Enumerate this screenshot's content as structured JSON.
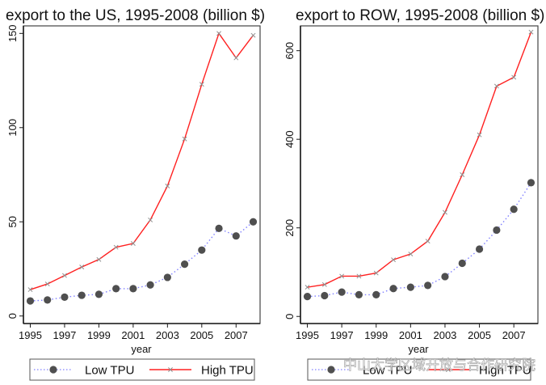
{
  "chart_data": [
    {
      "type": "line",
      "title": "export to the US, 1995-2008 (billion $)",
      "xlabel": "year",
      "ylabel": "",
      "x": [
        1995,
        1996,
        1997,
        1998,
        1999,
        2000,
        2001,
        2002,
        2003,
        2004,
        2005,
        2006,
        2007,
        2008
      ],
      "xticks": [
        1995,
        1997,
        1999,
        2001,
        2003,
        2005,
        2007
      ],
      "xlim": [
        1994.6,
        2008.4
      ],
      "yticks": [
        0,
        50,
        100,
        150
      ],
      "ylim": [
        -4,
        154
      ],
      "grid": false,
      "legend": "bottom",
      "series": [
        {
          "name": "Low TPU",
          "style": "dotted-marker-dot",
          "values": [
            8,
            8.5,
            10,
            11,
            11.5,
            14.5,
            14.5,
            16.5,
            20.5,
            27.5,
            35,
            46.5,
            42.5,
            50
          ]
        },
        {
          "name": "High TPU",
          "style": "solid-marker-x",
          "values": [
            14,
            17,
            21.5,
            26,
            30,
            36.5,
            38.5,
            51,
            69,
            94,
            123,
            150,
            137,
            149
          ]
        }
      ]
    },
    {
      "type": "line",
      "title": "export to ROW, 1995-2008 (billion $)",
      "xlabel": "year",
      "ylabel": "",
      "x": [
        1995,
        1996,
        1997,
        1998,
        1999,
        2000,
        2001,
        2002,
        2003,
        2004,
        2005,
        2006,
        2007,
        2008
      ],
      "xticks": [
        1995,
        1997,
        1999,
        2001,
        2003,
        2005,
        2007
      ],
      "xlim": [
        1994.6,
        2008.4
      ],
      "yticks": [
        0,
        200,
        400,
        600
      ],
      "ylim": [
        -16,
        656
      ],
      "grid": false,
      "legend": "bottom",
      "series": [
        {
          "name": "Low TPU",
          "style": "dotted-marker-dot",
          "values": [
            45,
            47,
            55,
            49,
            49,
            63,
            66,
            70,
            90,
            120,
            152,
            195,
            242,
            302
          ]
        },
        {
          "name": "High TPU",
          "style": "solid-marker-x",
          "values": [
            66,
            72,
            91,
            91,
            98,
            128,
            141,
            170,
            235,
            320,
            410,
            520,
            540,
            642
          ]
        }
      ]
    }
  ],
  "colors": {
    "high_tpu_line": "#ff2020",
    "low_tpu_line": "#8080ff",
    "low_tpu_marker": "#4f4f4f",
    "high_tpu_marker": "#909090",
    "axis": "#1a1a1a",
    "frame": "#444444"
  },
  "watermark": "中山大学区域开放与合作研究院"
}
